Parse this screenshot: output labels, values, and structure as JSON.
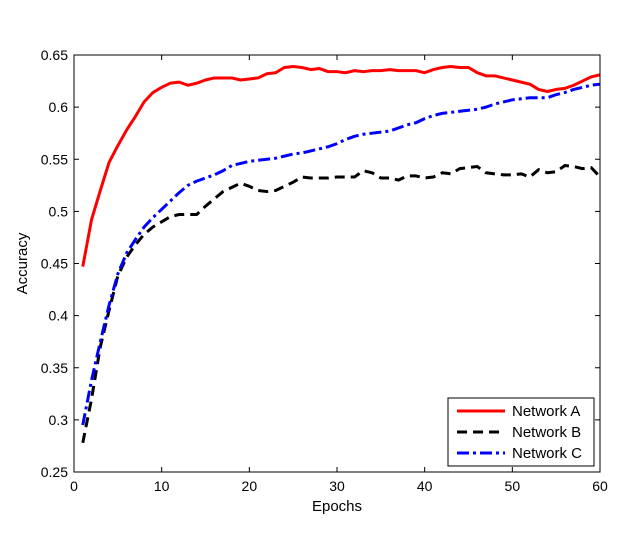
{
  "chart_data": {
    "type": "line",
    "title": "",
    "xlabel": "Epochs",
    "ylabel": "Accuracy",
    "xlim": [
      0,
      60
    ],
    "ylim": [
      0.25,
      0.65
    ],
    "xticks": [
      0,
      10,
      20,
      30,
      40,
      50,
      60
    ],
    "xtick_labels": [
      "0",
      "10",
      "20",
      "30",
      "40",
      "50",
      "60"
    ],
    "yticks": [
      0.25,
      0.3,
      0.35,
      0.4,
      0.45,
      0.5,
      0.55,
      0.6,
      0.65
    ],
    "ytick_labels": [
      "0.25",
      "0.3",
      "0.35",
      "0.4",
      "0.45",
      "0.5",
      "0.55",
      "0.6",
      "0.65"
    ],
    "grid": false,
    "legend_position": "bottom-right",
    "x": [
      1,
      2,
      3,
      4,
      5,
      6,
      7,
      8,
      9,
      10,
      11,
      12,
      13,
      14,
      15,
      16,
      17,
      18,
      19,
      20,
      21,
      22,
      23,
      24,
      25,
      26,
      27,
      28,
      29,
      30,
      31,
      32,
      33,
      34,
      35,
      36,
      37,
      38,
      39,
      40,
      41,
      42,
      43,
      44,
      45,
      46,
      47,
      48,
      49,
      50,
      51,
      52,
      53,
      54,
      55,
      56,
      57,
      58,
      59,
      60
    ],
    "series": [
      {
        "name": "Network A",
        "color": "#ff0000",
        "style": "solid",
        "values": [
          0.447,
          0.492,
          0.52,
          0.547,
          0.563,
          0.578,
          0.591,
          0.605,
          0.614,
          0.619,
          0.623,
          0.624,
          0.621,
          0.623,
          0.626,
          0.628,
          0.628,
          0.628,
          0.626,
          0.627,
          0.628,
          0.632,
          0.633,
          0.638,
          0.639,
          0.638,
          0.636,
          0.637,
          0.634,
          0.634,
          0.633,
          0.635,
          0.634,
          0.635,
          0.635,
          0.636,
          0.635,
          0.635,
          0.635,
          0.633,
          0.636,
          0.638,
          0.639,
          0.638,
          0.638,
          0.633,
          0.63,
          0.63,
          0.628,
          0.626,
          0.624,
          0.622,
          0.617,
          0.615,
          0.617,
          0.618,
          0.621,
          0.625,
          0.629,
          0.631
        ]
      },
      {
        "name": "Network B",
        "color": "#000000",
        "style": "dashed",
        "values": [
          0.278,
          0.32,
          0.37,
          0.405,
          0.438,
          0.456,
          0.468,
          0.478,
          0.485,
          0.49,
          0.495,
          0.497,
          0.497,
          0.497,
          0.505,
          0.512,
          0.519,
          0.523,
          0.527,
          0.524,
          0.52,
          0.519,
          0.52,
          0.524,
          0.528,
          0.533,
          0.532,
          0.532,
          0.532,
          0.533,
          0.533,
          0.533,
          0.539,
          0.537,
          0.532,
          0.532,
          0.53,
          0.534,
          0.534,
          0.532,
          0.533,
          0.537,
          0.536,
          0.541,
          0.542,
          0.543,
          0.537,
          0.536,
          0.535,
          0.535,
          0.536,
          0.533,
          0.54,
          0.537,
          0.538,
          0.544,
          0.543,
          0.541,
          0.542,
          0.533
        ]
      },
      {
        "name": "Network C",
        "color": "#0000ff",
        "style": "dashdot",
        "values": [
          0.295,
          0.338,
          0.375,
          0.41,
          0.44,
          0.46,
          0.473,
          0.485,
          0.494,
          0.502,
          0.51,
          0.518,
          0.525,
          0.529,
          0.532,
          0.535,
          0.539,
          0.544,
          0.546,
          0.548,
          0.549,
          0.55,
          0.551,
          0.553,
          0.555,
          0.556,
          0.558,
          0.56,
          0.562,
          0.565,
          0.569,
          0.572,
          0.574,
          0.575,
          0.576,
          0.577,
          0.58,
          0.583,
          0.585,
          0.589,
          0.592,
          0.594,
          0.595,
          0.596,
          0.597,
          0.598,
          0.6,
          0.603,
          0.605,
          0.607,
          0.608,
          0.609,
          0.609,
          0.609,
          0.612,
          0.614,
          0.617,
          0.619,
          0.621,
          0.622
        ]
      }
    ]
  }
}
